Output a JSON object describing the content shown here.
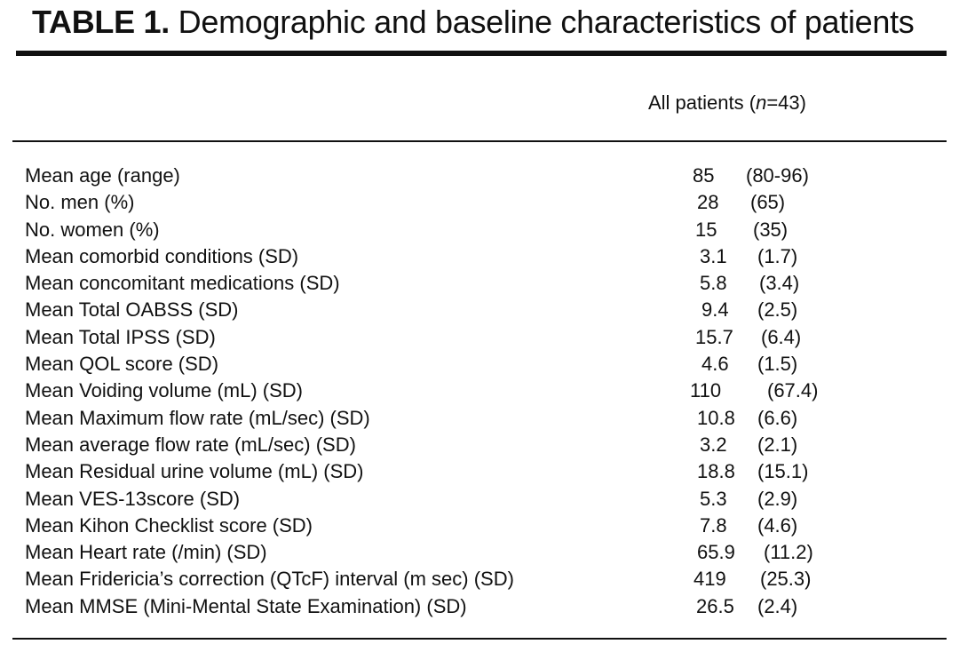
{
  "table": {
    "title_bold": "TABLE 1.",
    "title_text": " Demographic and baseline characteristics of patients",
    "column_header": {
      "prefix": "All patients (",
      "n_italic": "n",
      "suffix": "=43)"
    },
    "rows": [
      {
        "label": "Mean age (range)",
        "value": "85",
        "sd": "(80-96)"
      },
      {
        "label": "No. men (%)",
        "value": "28",
        "sd": "(65)"
      },
      {
        "label": "No. women (%)",
        "value": "15",
        "sd": "(35)"
      },
      {
        "label": "Mean comorbid conditions (SD)",
        "value": "3.1",
        "sd": "(1.7)"
      },
      {
        "label": "Mean concomitant medications (SD)",
        "value": "5.8",
        "sd": "(3.4)"
      },
      {
        "label": "Mean Total OABSS (SD)",
        "value": "9.4",
        "sd": "(2.5)"
      },
      {
        "label": "Mean Total IPSS (SD)",
        "value": "15.7",
        "sd": "(6.4)"
      },
      {
        "label": "Mean QOL score (SD)",
        "value": "4.6",
        "sd": "(1.5)"
      },
      {
        "label": "Mean Voiding volume (mL) (SD)",
        "value": "110",
        "sd": "(67.4)"
      },
      {
        "label": "Mean Maximum flow rate (mL/sec) (SD)",
        "value": "10.8",
        "sd": "(6.6)"
      },
      {
        "label": "Mean average flow rate (mL/sec) (SD)",
        "value": "3.2",
        "sd": "(2.1)"
      },
      {
        "label": "Mean Residual urine volume (mL) (SD)",
        "value": "18.8",
        "sd": "(15.1)"
      },
      {
        "label": "Mean VES-13score (SD)",
        "value": "5.3",
        "sd": "(2.9)"
      },
      {
        "label": "Mean Kihon Checklist score (SD)",
        "value": "7.8",
        "sd": "(4.6)"
      },
      {
        "label": "Mean Heart rate (/min) (SD)",
        "value": "65.9",
        "sd": "(11.2)"
      },
      {
        "label": "Mean Fridericia’s correction (QTcF) interval (m sec)  (SD)",
        "value": "419",
        "sd": "(25.3)"
      },
      {
        "label": "Mean MMSE (Mini-Mental State Examination) (SD)",
        "value": "26.5",
        "sd": "(2.4)"
      }
    ]
  }
}
